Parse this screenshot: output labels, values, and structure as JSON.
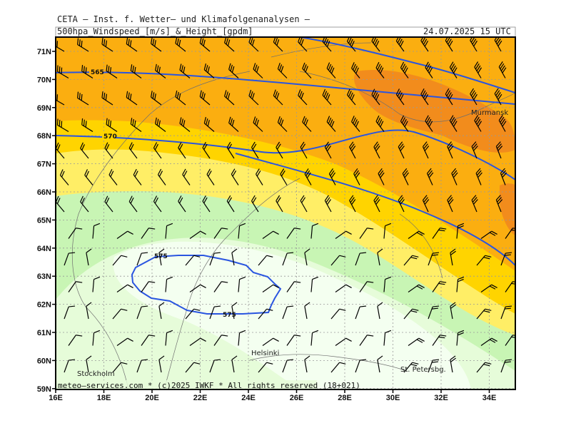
{
  "header": {
    "line1": "CETA — Inst. f. Wetter— und Klimafolgenanalysen —",
    "product": "500hpa_Windspeed_[m/s]_&_Height_[gpdm]",
    "valid_time": "24.07.2025 15 UTC"
  },
  "map": {
    "lat_labels": [
      "71N",
      "70N",
      "69N",
      "68N",
      "67N",
      "66N",
      "65N",
      "64N",
      "63N",
      "62N",
      "61N",
      "60N",
      "59N"
    ],
    "lon_labels": [
      "16E",
      "18E",
      "20E",
      "22E",
      "24E",
      "26E",
      "28E",
      "30E",
      "32E",
      "34E"
    ],
    "contour_labels": {
      "c565": "565",
      "c570": "570",
      "c575_top": "575",
      "c575_bottom": "575"
    },
    "cities": {
      "murmansk": "Murmansk",
      "stockholm": "Stockholm",
      "helsinki": "Helsinki",
      "st_petersburg": "St. Petersbg."
    },
    "credit": "meteo—services.com * (c)2025 IWKF * All rights reserved (18+021)",
    "colors": {
      "band_dark_orange": "#f28c1c",
      "band_orange": "#fbae10",
      "band_gold": "#ffd400",
      "band_yellow": "#ffee66",
      "band_light_green": "#c8f5b4",
      "band_pale_green": "#e6fcd9",
      "band_core": "#f4fff0",
      "contour": "#2a55e0"
    }
  }
}
